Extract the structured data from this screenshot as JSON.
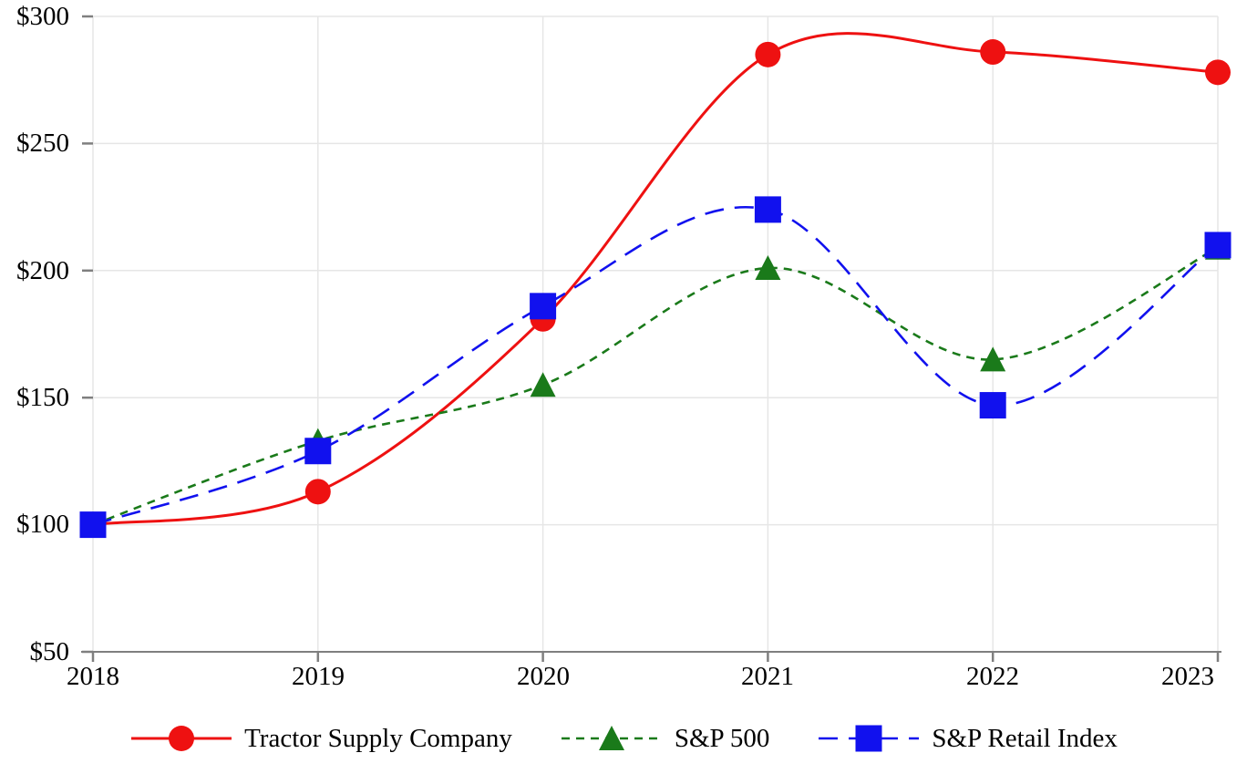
{
  "chart_data": {
    "type": "line",
    "title": "",
    "xlabel": "",
    "ylabel": "",
    "x": [
      2018,
      2019,
      2020,
      2021,
      2022,
      2023
    ],
    "x_tick_labels": [
      "2018",
      "2019",
      "2020",
      "2021",
      "2022",
      "2023"
    ],
    "y_tick_labels_top_down": [
      "$300",
      "$250",
      "$200",
      "$150",
      "$100",
      "$50"
    ],
    "ylim": [
      50,
      300
    ],
    "y_tick_step": 50,
    "grid": true,
    "legend_position": "bottom",
    "background_color": "#ffffff",
    "grid_color": "#e6e6e6",
    "axis_color": "#7f7f7f",
    "series": [
      {
        "name": "Tractor Supply Company",
        "values": [
          100,
          113,
          181,
          285,
          286,
          278
        ],
        "color": "#ee1111",
        "marker": "circle",
        "line_style": "solid"
      },
      {
        "name": "S&P 500",
        "values": [
          100,
          133,
          155,
          201,
          165,
          209
        ],
        "color": "#1a7a1a",
        "marker": "triangle",
        "line_style": "short-dash"
      },
      {
        "name": "S&P Retail Index",
        "values": [
          100,
          129,
          186,
          224,
          147,
          210
        ],
        "color": "#1111ee",
        "marker": "square",
        "line_style": "long-dash"
      }
    ]
  }
}
